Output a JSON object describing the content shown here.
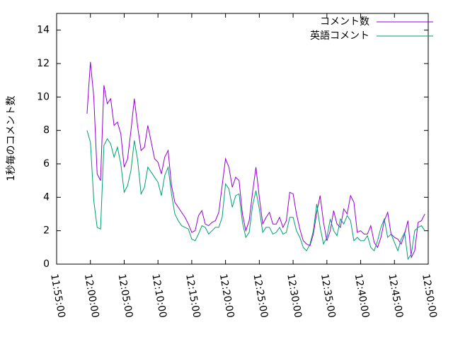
{
  "chart_data": {
    "type": "line",
    "ylabel": "1秒毎のコメント数",
    "x": [
      "11:59:30",
      "12:00:00",
      "12:00:30",
      "12:01:00",
      "12:01:30",
      "12:02:00",
      "12:02:30",
      "12:03:00",
      "12:03:30",
      "12:04:00",
      "12:04:30",
      "12:05:00",
      "12:05:30",
      "12:06:00",
      "12:06:30",
      "12:07:00",
      "12:07:30",
      "12:08:00",
      "12:08:30",
      "12:09:00",
      "12:09:30",
      "12:10:00",
      "12:10:30",
      "12:11:00",
      "12:11:30",
      "12:12:00",
      "12:12:30",
      "12:13:00",
      "12:13:30",
      "12:14:00",
      "12:14:30",
      "12:15:00",
      "12:15:30",
      "12:16:00",
      "12:16:30",
      "12:17:00",
      "12:17:30",
      "12:18:00",
      "12:18:30",
      "12:19:00",
      "12:19:30",
      "12:20:00",
      "12:20:30",
      "12:21:00",
      "12:21:30",
      "12:22:00",
      "12:22:30",
      "12:23:00",
      "12:23:30",
      "12:24:00",
      "12:24:30",
      "12:25:00",
      "12:25:30",
      "12:26:00",
      "12:26:30",
      "12:27:00",
      "12:27:30",
      "12:28:00",
      "12:28:30",
      "12:29:00",
      "12:29:30",
      "12:30:00",
      "12:30:30",
      "12:31:00",
      "12:31:30",
      "12:32:00",
      "12:32:30",
      "12:33:00",
      "12:33:30",
      "12:34:00",
      "12:34:30",
      "12:35:00",
      "12:35:30",
      "12:36:00",
      "12:36:30",
      "12:37:00",
      "12:37:30",
      "12:38:00",
      "12:38:30",
      "12:39:00",
      "12:39:30",
      "12:40:00",
      "12:40:30",
      "12:41:00",
      "12:41:30",
      "12:42:00",
      "12:42:30",
      "12:43:00",
      "12:43:30",
      "12:44:00",
      "12:44:30",
      "12:45:00",
      "12:45:30",
      "12:46:00",
      "12:46:30",
      "12:47:00",
      "12:47:30",
      "12:48:00",
      "12:48:30",
      "12:49:00",
      "12:49:30"
    ],
    "series": [
      {
        "name": "コメント数",
        "color": "#9400d3",
        "values": [
          9.0,
          12.1,
          10.0,
          5.4,
          5.0,
          10.7,
          9.6,
          9.9,
          8.3,
          8.5,
          7.8,
          5.8,
          6.3,
          8.0,
          9.9,
          8.2,
          6.8,
          7.0,
          8.3,
          7.3,
          6.3,
          6.1,
          5.4,
          6.4,
          6.8,
          4.7,
          3.7,
          3.4,
          3.1,
          2.8,
          2.4,
          1.9,
          2.0,
          2.9,
          3.2,
          2.4,
          2.3,
          2.5,
          2.6,
          3.1,
          4.7,
          6.3,
          5.8,
          4.6,
          5.2,
          5.0,
          3.0,
          2.0,
          2.6,
          4.3,
          5.8,
          4.0,
          2.4,
          2.8,
          3.1,
          2.4,
          2.4,
          2.8,
          2.2,
          2.6,
          4.3,
          4.2,
          3.0,
          2.1,
          1.4,
          1.2,
          1.1,
          1.8,
          3.1,
          4.1,
          2.5,
          1.4,
          2.0,
          3.2,
          2.4,
          2.2,
          3.3,
          3.0,
          4.1,
          3.7,
          1.9,
          2.0,
          1.8,
          1.8,
          2.3,
          1.3,
          1.0,
          1.6,
          2.6,
          3.1,
          1.8,
          1.6,
          1.5,
          1.2,
          1.8,
          2.6,
          0.4,
          0.8,
          2.5,
          2.6,
          3.0
        ]
      },
      {
        "name": "英語コメント",
        "color": "#009e73",
        "values": [
          8.0,
          7.3,
          3.8,
          2.2,
          2.1,
          7.1,
          7.5,
          7.2,
          6.4,
          7.0,
          6.0,
          4.3,
          4.7,
          5.6,
          7.4,
          6.2,
          4.2,
          4.6,
          5.8,
          5.5,
          5.2,
          4.9,
          4.1,
          5.3,
          5.8,
          4.2,
          3.0,
          2.6,
          2.3,
          2.2,
          2.1,
          1.5,
          1.4,
          1.8,
          2.3,
          2.2,
          1.8,
          2.0,
          2.2,
          2.2,
          2.8,
          4.8,
          4.5,
          3.4,
          4.1,
          4.2,
          2.5,
          1.6,
          1.9,
          3.5,
          4.4,
          3.3,
          1.9,
          2.2,
          2.2,
          1.8,
          1.9,
          2.2,
          1.8,
          1.9,
          2.8,
          2.8,
          2.0,
          1.6,
          1.0,
          0.8,
          1.2,
          2.0,
          3.6,
          2.2,
          1.2,
          1.6,
          2.7,
          2.0,
          1.7,
          2.7,
          2.4,
          2.9,
          2.6,
          1.4,
          1.6,
          1.4,
          1.4,
          1.7,
          1.0,
          0.8,
          1.4,
          2.2,
          2.7,
          1.6,
          1.8,
          1.3,
          0.8,
          1.5,
          1.9,
          0.3,
          0.6,
          2.0,
          2.2,
          2.3,
          2.0
        ]
      }
    ],
    "xlim": [
      "11:55:00",
      "12:50:00"
    ],
    "xticks": [
      "11:55:00",
      "12:00:00",
      "12:05:00",
      "12:10:00",
      "12:15:00",
      "12:20:00",
      "12:25:00",
      "12:30:00",
      "12:35:00",
      "12:40:00",
      "12:45:00",
      "12:50:00"
    ],
    "ylim": [
      0,
      15
    ],
    "yticks": [
      0,
      2,
      4,
      6,
      8,
      10,
      12,
      14
    ],
    "legend": "top-right"
  }
}
